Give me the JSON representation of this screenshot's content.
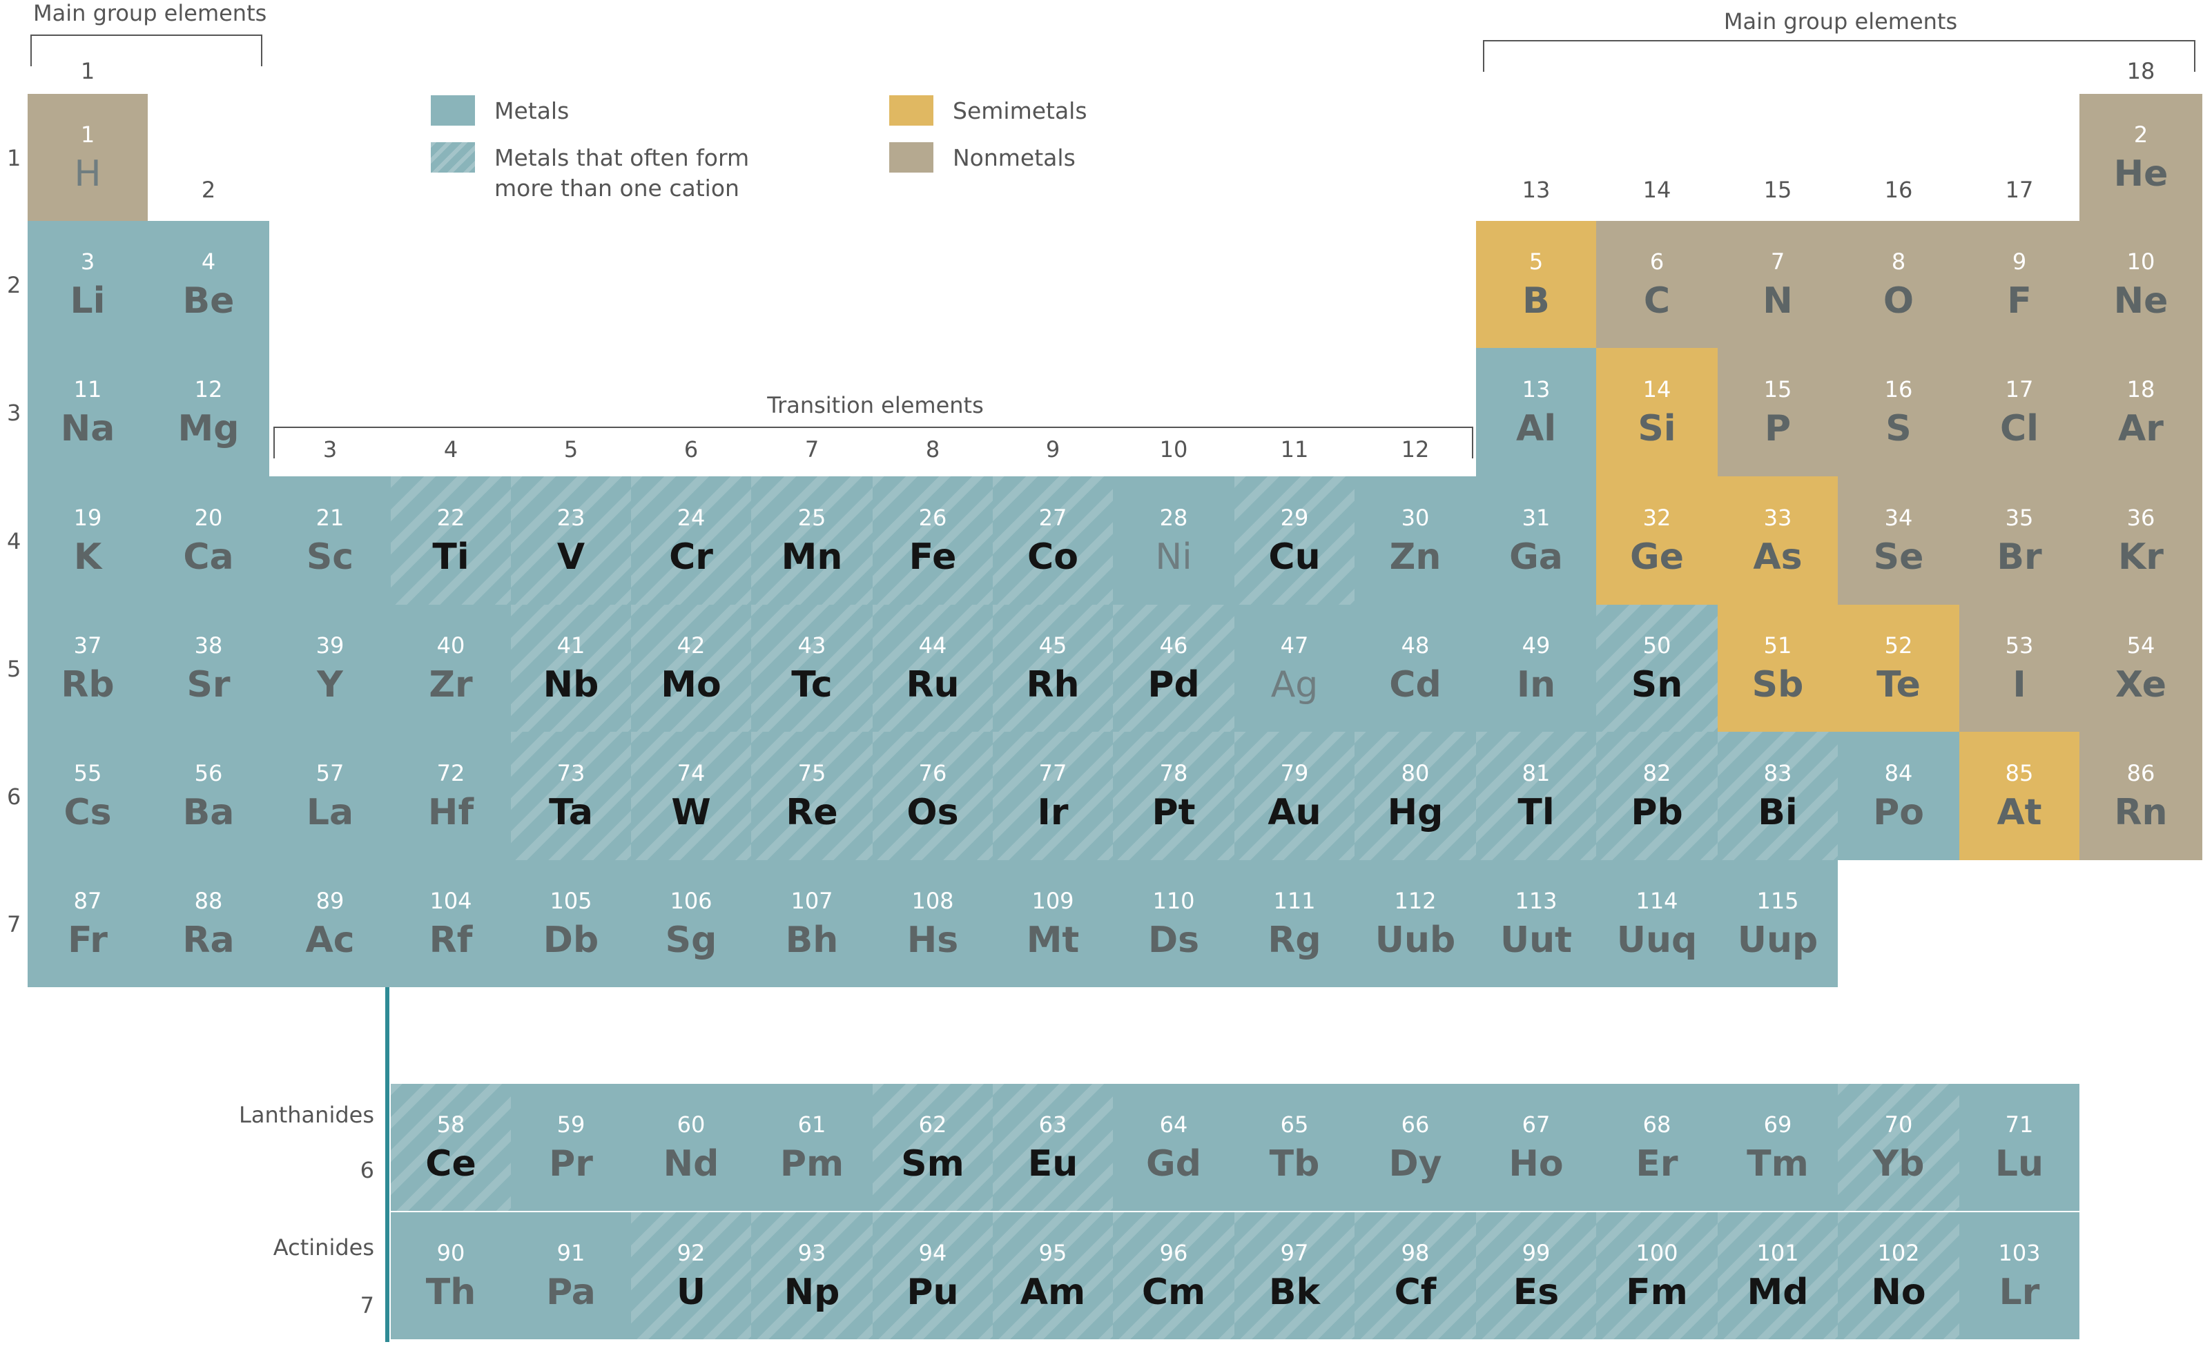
{
  "colors": {
    "metal": "#8ab4ba",
    "semimetal": "#e0b862",
    "nonmetal": "#b5a990",
    "text": "#555555",
    "connector": "#2f8b95"
  },
  "labels": {
    "main_group_left": "Main group elements",
    "main_group_right": "Main group elements",
    "transition": "Transition elements",
    "lanthanides": "Lanthanides",
    "actinides": "Actinides",
    "lanthanide_period": "6",
    "actinide_period": "7"
  },
  "legend": {
    "metals": "Metals",
    "multi_cation_line1": "Metals that often form",
    "multi_cation_line2": "more than one cation",
    "semimetals": "Semimetals",
    "nonmetals": "Nonmetals"
  },
  "groups": [
    "1",
    "2",
    "3",
    "4",
    "5",
    "6",
    "7",
    "8",
    "9",
    "10",
    "11",
    "12",
    "13",
    "14",
    "15",
    "16",
    "17",
    "18"
  ],
  "periods": [
    "1",
    "2",
    "3",
    "4",
    "5",
    "6",
    "7"
  ],
  "elements": [
    {
      "n": "1",
      "s": "H",
      "c": "nonmetal",
      "sc": "light",
      "col": 1,
      "row": 1
    },
    {
      "n": "2",
      "s": "He",
      "c": "nonmetal",
      "sc": "mid",
      "col": 18,
      "row": 1
    },
    {
      "n": "3",
      "s": "Li",
      "c": "metal",
      "sc": "mid",
      "col": 1,
      "row": 2
    },
    {
      "n": "4",
      "s": "Be",
      "c": "metal",
      "sc": "mid",
      "col": 2,
      "row": 2
    },
    {
      "n": "5",
      "s": "B",
      "c": "semimetal",
      "sc": "mid",
      "col": 13,
      "row": 2
    },
    {
      "n": "6",
      "s": "C",
      "c": "nonmetal",
      "sc": "mid",
      "col": 14,
      "row": 2
    },
    {
      "n": "7",
      "s": "N",
      "c": "nonmetal",
      "sc": "mid",
      "col": 15,
      "row": 2
    },
    {
      "n": "8",
      "s": "O",
      "c": "nonmetal",
      "sc": "mid",
      "col": 16,
      "row": 2
    },
    {
      "n": "9",
      "s": "F",
      "c": "nonmetal",
      "sc": "mid",
      "col": 17,
      "row": 2
    },
    {
      "n": "10",
      "s": "Ne",
      "c": "nonmetal",
      "sc": "mid",
      "col": 18,
      "row": 2
    },
    {
      "n": "11",
      "s": "Na",
      "c": "metal",
      "sc": "mid",
      "col": 1,
      "row": 3
    },
    {
      "n": "12",
      "s": "Mg",
      "c": "metal",
      "sc": "mid",
      "col": 2,
      "row": 3
    },
    {
      "n": "13",
      "s": "Al",
      "c": "metal",
      "sc": "mid",
      "col": 13,
      "row": 3
    },
    {
      "n": "14",
      "s": "Si",
      "c": "semimetal",
      "sc": "mid",
      "col": 14,
      "row": 3
    },
    {
      "n": "15",
      "s": "P",
      "c": "nonmetal",
      "sc": "mid",
      "col": 15,
      "row": 3
    },
    {
      "n": "16",
      "s": "S",
      "c": "nonmetal",
      "sc": "mid",
      "col": 16,
      "row": 3
    },
    {
      "n": "17",
      "s": "Cl",
      "c": "nonmetal",
      "sc": "mid",
      "col": 17,
      "row": 3
    },
    {
      "n": "18",
      "s": "Ar",
      "c": "nonmetal",
      "sc": "mid",
      "col": 18,
      "row": 3
    },
    {
      "n": "19",
      "s": "K",
      "c": "metal",
      "sc": "mid",
      "col": 1,
      "row": 4
    },
    {
      "n": "20",
      "s": "Ca",
      "c": "metal",
      "sc": "mid",
      "col": 2,
      "row": 4
    },
    {
      "n": "21",
      "s": "Sc",
      "c": "metal",
      "sc": "mid",
      "col": 3,
      "row": 4
    },
    {
      "n": "22",
      "s": "Ti",
      "c": "striped",
      "sc": "dark",
      "col": 4,
      "row": 4
    },
    {
      "n": "23",
      "s": "V",
      "c": "striped",
      "sc": "dark",
      "col": 5,
      "row": 4
    },
    {
      "n": "24",
      "s": "Cr",
      "c": "striped",
      "sc": "dark",
      "col": 6,
      "row": 4
    },
    {
      "n": "25",
      "s": "Mn",
      "c": "striped",
      "sc": "dark",
      "col": 7,
      "row": 4
    },
    {
      "n": "26",
      "s": "Fe",
      "c": "striped",
      "sc": "dark",
      "col": 8,
      "row": 4
    },
    {
      "n": "27",
      "s": "Co",
      "c": "striped",
      "sc": "dark",
      "col": 9,
      "row": 4
    },
    {
      "n": "28",
      "s": "Ni",
      "c": "metal",
      "sc": "light",
      "col": 10,
      "row": 4
    },
    {
      "n": "29",
      "s": "Cu",
      "c": "striped",
      "sc": "dark",
      "col": 11,
      "row": 4
    },
    {
      "n": "30",
      "s": "Zn",
      "c": "metal",
      "sc": "mid",
      "col": 12,
      "row": 4
    },
    {
      "n": "31",
      "s": "Ga",
      "c": "metal",
      "sc": "mid",
      "col": 13,
      "row": 4
    },
    {
      "n": "32",
      "s": "Ge",
      "c": "semimetal",
      "sc": "mid",
      "col": 14,
      "row": 4
    },
    {
      "n": "33",
      "s": "As",
      "c": "semimetal",
      "sc": "mid",
      "col": 15,
      "row": 4
    },
    {
      "n": "34",
      "s": "Se",
      "c": "nonmetal",
      "sc": "mid",
      "col": 16,
      "row": 4
    },
    {
      "n": "35",
      "s": "Br",
      "c": "nonmetal",
      "sc": "mid",
      "col": 17,
      "row": 4
    },
    {
      "n": "36",
      "s": "Kr",
      "c": "nonmetal",
      "sc": "mid",
      "col": 18,
      "row": 4
    },
    {
      "n": "37",
      "s": "Rb",
      "c": "metal",
      "sc": "mid",
      "col": 1,
      "row": 5
    },
    {
      "n": "38",
      "s": "Sr",
      "c": "metal",
      "sc": "mid",
      "col": 2,
      "row": 5
    },
    {
      "n": "39",
      "s": "Y",
      "c": "metal",
      "sc": "mid",
      "col": 3,
      "row": 5
    },
    {
      "n": "40",
      "s": "Zr",
      "c": "metal",
      "sc": "mid",
      "col": 4,
      "row": 5
    },
    {
      "n": "41",
      "s": "Nb",
      "c": "striped",
      "sc": "dark",
      "col": 5,
      "row": 5
    },
    {
      "n": "42",
      "s": "Mo",
      "c": "striped",
      "sc": "dark",
      "col": 6,
      "row": 5
    },
    {
      "n": "43",
      "s": "Tc",
      "c": "striped",
      "sc": "dark",
      "col": 7,
      "row": 5
    },
    {
      "n": "44",
      "s": "Ru",
      "c": "striped",
      "sc": "dark",
      "col": 8,
      "row": 5
    },
    {
      "n": "45",
      "s": "Rh",
      "c": "striped",
      "sc": "dark",
      "col": 9,
      "row": 5
    },
    {
      "n": "46",
      "s": "Pd",
      "c": "striped",
      "sc": "dark",
      "col": 10,
      "row": 5
    },
    {
      "n": "47",
      "s": "Ag",
      "c": "metal",
      "sc": "light",
      "col": 11,
      "row": 5
    },
    {
      "n": "48",
      "s": "Cd",
      "c": "metal",
      "sc": "mid",
      "col": 12,
      "row": 5
    },
    {
      "n": "49",
      "s": "In",
      "c": "metal",
      "sc": "mid",
      "col": 13,
      "row": 5
    },
    {
      "n": "50",
      "s": "Sn",
      "c": "striped",
      "sc": "dark",
      "col": 14,
      "row": 5
    },
    {
      "n": "51",
      "s": "Sb",
      "c": "semimetal",
      "sc": "mid",
      "col": 15,
      "row": 5
    },
    {
      "n": "52",
      "s": "Te",
      "c": "semimetal",
      "sc": "mid",
      "col": 16,
      "row": 5
    },
    {
      "n": "53",
      "s": "I",
      "c": "nonmetal",
      "sc": "mid",
      "col": 17,
      "row": 5
    },
    {
      "n": "54",
      "s": "Xe",
      "c": "nonmetal",
      "sc": "mid",
      "col": 18,
      "row": 5
    },
    {
      "n": "55",
      "s": "Cs",
      "c": "metal",
      "sc": "mid",
      "col": 1,
      "row": 6
    },
    {
      "n": "56",
      "s": "Ba",
      "c": "metal",
      "sc": "mid",
      "col": 2,
      "row": 6
    },
    {
      "n": "57",
      "s": "La",
      "c": "metal",
      "sc": "mid",
      "col": 3,
      "row": 6
    },
    {
      "n": "72",
      "s": "Hf",
      "c": "metal",
      "sc": "mid",
      "col": 4,
      "row": 6
    },
    {
      "n": "73",
      "s": "Ta",
      "c": "striped",
      "sc": "dark",
      "col": 5,
      "row": 6
    },
    {
      "n": "74",
      "s": "W",
      "c": "striped",
      "sc": "dark",
      "col": 6,
      "row": 6
    },
    {
      "n": "75",
      "s": "Re",
      "c": "striped",
      "sc": "dark",
      "col": 7,
      "row": 6
    },
    {
      "n": "76",
      "s": "Os",
      "c": "striped",
      "sc": "dark",
      "col": 8,
      "row": 6
    },
    {
      "n": "77",
      "s": "Ir",
      "c": "striped",
      "sc": "dark",
      "col": 9,
      "row": 6
    },
    {
      "n": "78",
      "s": "Pt",
      "c": "striped",
      "sc": "dark",
      "col": 10,
      "row": 6
    },
    {
      "n": "79",
      "s": "Au",
      "c": "striped",
      "sc": "dark",
      "col": 11,
      "row": 6
    },
    {
      "n": "80",
      "s": "Hg",
      "c": "striped",
      "sc": "dark",
      "col": 12,
      "row": 6
    },
    {
      "n": "81",
      "s": "Tl",
      "c": "striped",
      "sc": "dark",
      "col": 13,
      "row": 6
    },
    {
      "n": "82",
      "s": "Pb",
      "c": "striped",
      "sc": "dark",
      "col": 14,
      "row": 6
    },
    {
      "n": "83",
      "s": "Bi",
      "c": "striped",
      "sc": "dark",
      "col": 15,
      "row": 6
    },
    {
      "n": "84",
      "s": "Po",
      "c": "metal",
      "sc": "mid",
      "col": 16,
      "row": 6
    },
    {
      "n": "85",
      "s": "At",
      "c": "semimetal",
      "sc": "mid",
      "col": 17,
      "row": 6
    },
    {
      "n": "86",
      "s": "Rn",
      "c": "nonmetal",
      "sc": "mid",
      "col": 18,
      "row": 6
    },
    {
      "n": "87",
      "s": "Fr",
      "c": "metal",
      "sc": "mid",
      "col": 1,
      "row": 7
    },
    {
      "n": "88",
      "s": "Ra",
      "c": "metal",
      "sc": "mid",
      "col": 2,
      "row": 7
    },
    {
      "n": "89",
      "s": "Ac",
      "c": "metal",
      "sc": "mid",
      "col": 3,
      "row": 7
    },
    {
      "n": "104",
      "s": "Rf",
      "c": "metal",
      "sc": "mid",
      "col": 4,
      "row": 7
    },
    {
      "n": "105",
      "s": "Db",
      "c": "metal",
      "sc": "mid",
      "col": 5,
      "row": 7
    },
    {
      "n": "106",
      "s": "Sg",
      "c": "metal",
      "sc": "mid",
      "col": 6,
      "row": 7
    },
    {
      "n": "107",
      "s": "Bh",
      "c": "metal",
      "sc": "mid",
      "col": 7,
      "row": 7
    },
    {
      "n": "108",
      "s": "Hs",
      "c": "metal",
      "sc": "mid",
      "col": 8,
      "row": 7
    },
    {
      "n": "109",
      "s": "Mt",
      "c": "metal",
      "sc": "mid",
      "col": 9,
      "row": 7
    },
    {
      "n": "110",
      "s": "Ds",
      "c": "metal",
      "sc": "mid",
      "col": 10,
      "row": 7
    },
    {
      "n": "111",
      "s": "Rg",
      "c": "metal",
      "sc": "mid",
      "col": 11,
      "row": 7
    },
    {
      "n": "112",
      "s": "Uub",
      "c": "metal",
      "sc": "mid",
      "col": 12,
      "row": 7
    },
    {
      "n": "113",
      "s": "Uut",
      "c": "metal",
      "sc": "mid",
      "col": 13,
      "row": 7
    },
    {
      "n": "114",
      "s": "Uuq",
      "c": "metal",
      "sc": "mid",
      "col": 14,
      "row": 7
    },
    {
      "n": "115",
      "s": "Uup",
      "c": "metal",
      "sc": "mid",
      "col": 15,
      "row": 7
    }
  ],
  "lanthanides": [
    {
      "n": "58",
      "s": "Ce",
      "c": "striped",
      "sc": "dark"
    },
    {
      "n": "59",
      "s": "Pr",
      "c": "metal",
      "sc": "mid"
    },
    {
      "n": "60",
      "s": "Nd",
      "c": "metal",
      "sc": "mid"
    },
    {
      "n": "61",
      "s": "Pm",
      "c": "metal",
      "sc": "mid"
    },
    {
      "n": "62",
      "s": "Sm",
      "c": "striped",
      "sc": "dark"
    },
    {
      "n": "63",
      "s": "Eu",
      "c": "striped",
      "sc": "dark"
    },
    {
      "n": "64",
      "s": "Gd",
      "c": "metal",
      "sc": "mid"
    },
    {
      "n": "65",
      "s": "Tb",
      "c": "metal",
      "sc": "mid"
    },
    {
      "n": "66",
      "s": "Dy",
      "c": "metal",
      "sc": "mid"
    },
    {
      "n": "67",
      "s": "Ho",
      "c": "metal",
      "sc": "mid"
    },
    {
      "n": "68",
      "s": "Er",
      "c": "metal",
      "sc": "mid"
    },
    {
      "n": "69",
      "s": "Tm",
      "c": "metal",
      "sc": "mid"
    },
    {
      "n": "70",
      "s": "Yb",
      "c": "striped",
      "sc": "mid"
    },
    {
      "n": "71",
      "s": "Lu",
      "c": "metal",
      "sc": "mid"
    }
  ],
  "actinides": [
    {
      "n": "90",
      "s": "Th",
      "c": "metal",
      "sc": "mid"
    },
    {
      "n": "91",
      "s": "Pa",
      "c": "metal",
      "sc": "mid"
    },
    {
      "n": "92",
      "s": "U",
      "c": "striped",
      "sc": "dark"
    },
    {
      "n": "93",
      "s": "Np",
      "c": "striped",
      "sc": "dark"
    },
    {
      "n": "94",
      "s": "Pu",
      "c": "striped",
      "sc": "dark"
    },
    {
      "n": "95",
      "s": "Am",
      "c": "striped",
      "sc": "dark"
    },
    {
      "n": "96",
      "s": "Cm",
      "c": "striped",
      "sc": "dark"
    },
    {
      "n": "97",
      "s": "Bk",
      "c": "striped",
      "sc": "dark"
    },
    {
      "n": "98",
      "s": "Cf",
      "c": "striped",
      "sc": "dark"
    },
    {
      "n": "99",
      "s": "Es",
      "c": "striped",
      "sc": "dark"
    },
    {
      "n": "100",
      "s": "Fm",
      "c": "striped",
      "sc": "dark"
    },
    {
      "n": "101",
      "s": "Md",
      "c": "striped",
      "sc": "dark"
    },
    {
      "n": "102",
      "s": "No",
      "c": "striped",
      "sc": "dark"
    },
    {
      "n": "103",
      "s": "Lr",
      "c": "metal",
      "sc": "mid"
    }
  ]
}
